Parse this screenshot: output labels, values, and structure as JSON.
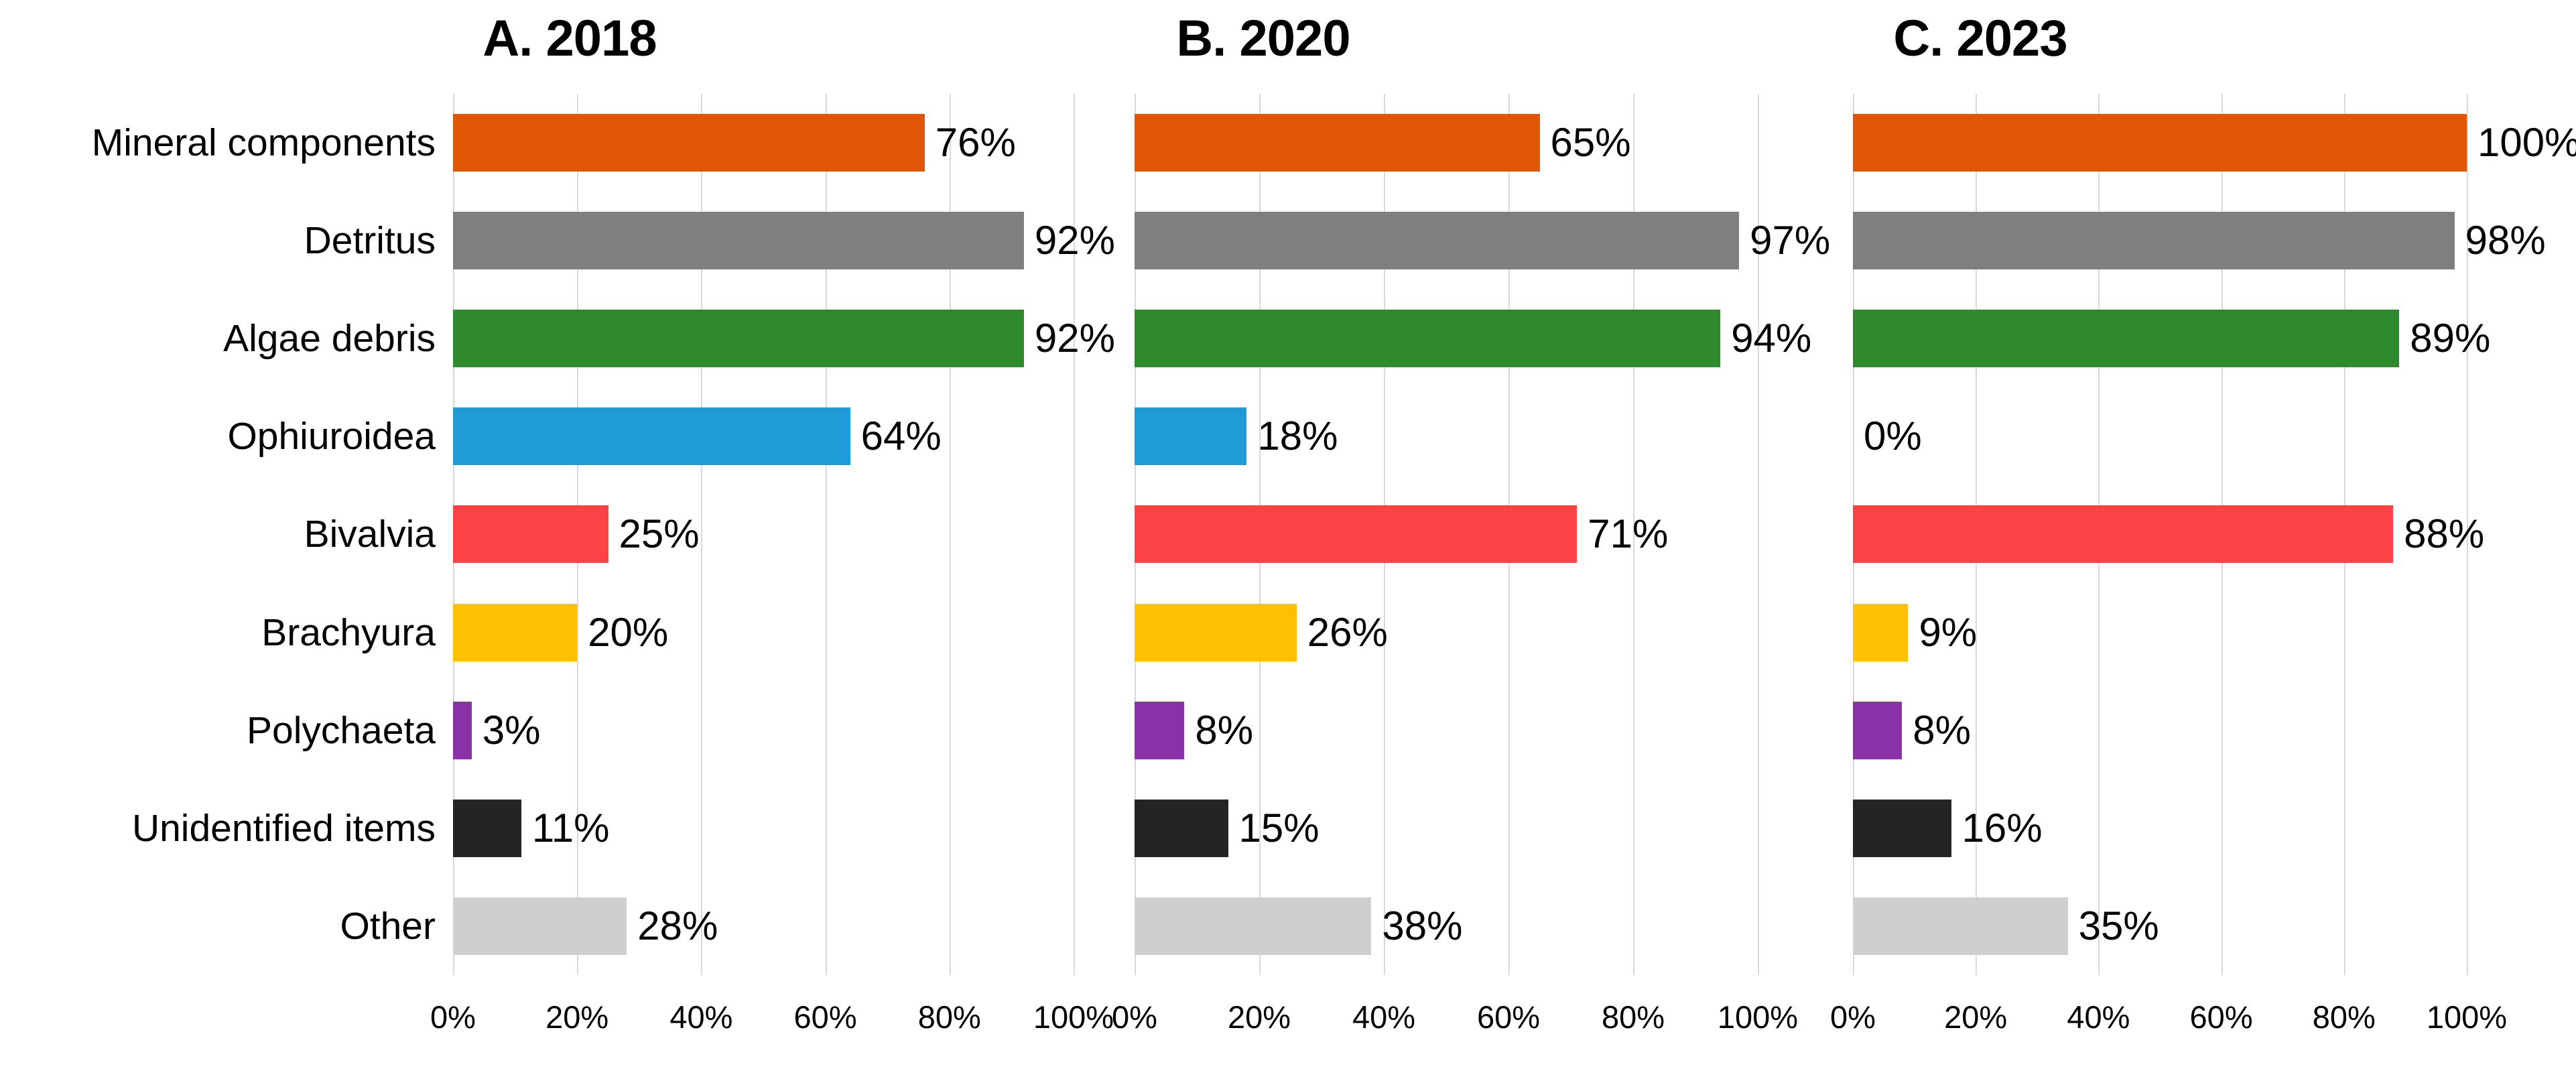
{
  "chart_data": {
    "type": "bar",
    "orientation": "horizontal",
    "title": "",
    "categories": [
      "Mineral components",
      "Detritus",
      "Algae debris",
      "Ophiuroidea",
      "Bivalvia",
      "Brachyura",
      "Polychaeta",
      "Unidentified items",
      "Other"
    ],
    "series": [
      {
        "name": "A. 2018",
        "values": [
          76,
          92,
          92,
          64,
          25,
          20,
          3,
          11,
          28
        ]
      },
      {
        "name": "B. 2020",
        "values": [
          65,
          97,
          94,
          18,
          71,
          26,
          8,
          15,
          38
        ]
      },
      {
        "name": "C. 2023",
        "values": [
          100,
          98,
          89,
          0,
          88,
          9,
          8,
          16,
          35
        ]
      }
    ],
    "value_label_suffix": "%",
    "x_tick_labels": [
      "0%",
      "20%",
      "40%",
      "60%",
      "80%",
      "100%"
    ],
    "xlim": [
      0,
      100
    ],
    "grid": {
      "vertical_step_percent": 20,
      "color": "#d9d9d9"
    },
    "legend_position": "none",
    "category_colors": {
      "Mineral components": "#E05604",
      "Detritus": "#7F7F7F",
      "Algae debris": "#2E8A2B",
      "Ophiuroidea": "#1F9CD8",
      "Bivalvia": "#FD4345",
      "Brachyura": "#FFC002",
      "Polychaeta": "#8A31A8",
      "Unidentified items": "#242424",
      "Other": "#D0CECE"
    }
  }
}
